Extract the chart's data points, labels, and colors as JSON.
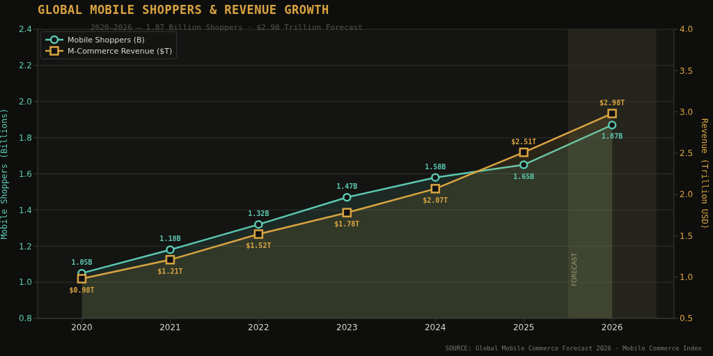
{
  "chart_data": {
    "type": "area",
    "title": "GLOBAL MOBILE SHOPPERS & REVENUE GROWTH",
    "subtitle": "2020–2026 — 1.87 Billion Shoppers · $2.98 Trillion Forecast",
    "ylabel": "Mobile Shoppers (Billions)",
    "y2label": "Revenue (Trillion USD)",
    "x": [
      2020,
      2021,
      2022,
      2023,
      2024,
      2025,
      2026
    ],
    "series": [
      {
        "name": "Mobile Shoppers (B)",
        "color": "#5cc8b0",
        "marker": "circle",
        "values": [
          1.05,
          1.18,
          1.32,
          1.47,
          1.58,
          1.65,
          1.87
        ],
        "value_labels": [
          "1.05B",
          "1.18B",
          "1.32B",
          "1.47B",
          "1.58B",
          "1.65B",
          "1.87B"
        ]
      },
      {
        "name": "M-Commerce Revenue ($T)",
        "color": "#d9a441",
        "marker": "square",
        "axis": "y2",
        "values": [
          0.98,
          1.21,
          1.52,
          1.78,
          2.07,
          2.51,
          2.98
        ],
        "value_labels": [
          "$0.98T",
          "$1.21T",
          "$1.52T",
          "$1.78T",
          "$2.07T",
          "$2.51T",
          "$2.98T"
        ]
      }
    ],
    "xlim": [
      2019.5,
      2026.7
    ],
    "xticks": [
      2020,
      2021,
      2022,
      2023,
      2024,
      2025,
      2026
    ],
    "ylim": [
      0.8,
      2.4
    ],
    "yticks": [
      {
        "value": 0.8,
        "label": "0.8"
      },
      {
        "value": 1,
        "label": "1.0"
      },
      {
        "value": 1.2,
        "label": "1.2"
      },
      {
        "value": 1.4,
        "label": "1.4"
      },
      {
        "value": 1.6,
        "label": "1.6"
      },
      {
        "value": 1.8,
        "label": "1.8"
      },
      {
        "value": 2,
        "label": "2.0"
      },
      {
        "value": 2.2,
        "label": "2.2"
      },
      {
        "value": 2.4,
        "label": "2.4"
      }
    ],
    "y2lim": [
      0.5,
      4
    ],
    "y2ticks": [
      {
        "value": 0.5,
        "label": "0.5"
      },
      {
        "value": 1,
        "label": "1.0"
      },
      {
        "value": 1.5,
        "label": "1.5"
      },
      {
        "value": 2,
        "label": "2.0"
      },
      {
        "value": 2.5,
        "label": "2.5"
      },
      {
        "value": 3,
        "label": "3.0"
      },
      {
        "value": 3.5,
        "label": "3.5"
      },
      {
        "value": 4,
        "label": "4.0"
      }
    ],
    "bands": [
      {
        "axis": "x",
        "from": 2025.5,
        "to": 2026.5,
        "label": "FORECAST",
        "color": "#3a3a2a"
      }
    ],
    "grid": "y",
    "legend": "top left",
    "annotations": [
      "SOURCE: Global Mobile Commerce Forecast 2026 · Mobile Commerce Index"
    ]
  }
}
